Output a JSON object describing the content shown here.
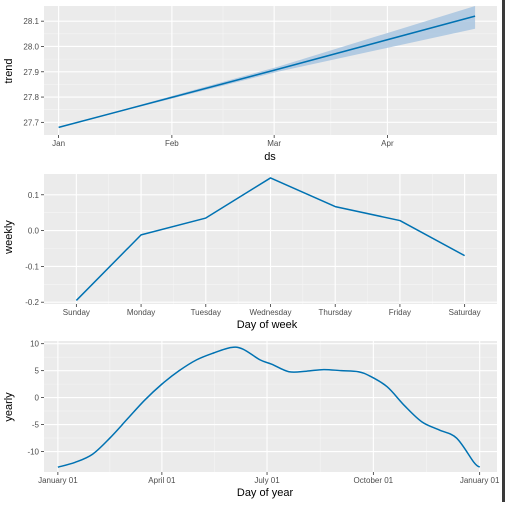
{
  "chart_data": [
    {
      "type": "line",
      "xlabel": "ds",
      "ylabel": "trend",
      "x_ticks": [
        "Jan",
        "Feb",
        "Mar",
        "Apr"
      ],
      "x_tick_days": [
        0,
        31,
        59,
        90
      ],
      "xlim_days": [
        -4,
        120
      ],
      "y_ticks": [
        27.7,
        27.8,
        27.9,
        28.0,
        28.1
      ],
      "y_tick_labels": [
        "27.7",
        "27.8",
        "27.9",
        "28.0",
        "28.1"
      ],
      "ylim": [
        27.65,
        28.16
      ],
      "line_color": "#0072B2",
      "band_color": "#a9c6e0",
      "series": [
        {
          "x_days": [
            0,
            60,
            114
          ],
          "values": [
            27.68,
            27.91,
            28.12
          ]
        }
      ],
      "uncertainty_band": {
        "x_days": [
          0,
          60,
          114
        ],
        "lower": [
          27.68,
          27.9,
          28.07
        ],
        "upper": [
          27.68,
          27.92,
          28.16
        ]
      },
      "grid": true
    },
    {
      "type": "line",
      "xlabel": "Day of week",
      "ylabel": "weekly",
      "categories": [
        "Sunday",
        "Monday",
        "Tuesday",
        "Wednesday",
        "Thursday",
        "Friday",
        "Saturday"
      ],
      "values": [
        -0.195,
        -0.012,
        0.035,
        0.147,
        0.067,
        0.028,
        -0.07
      ],
      "y_ticks": [
        -0.2,
        -0.1,
        0.0,
        0.1
      ],
      "y_tick_labels": [
        "-0.2",
        "-0.1",
        "0.0",
        "0.1"
      ],
      "ylim": [
        -0.205,
        0.158
      ],
      "line_color": "#0072B2",
      "grid": true
    },
    {
      "type": "line",
      "xlabel": "Day of year",
      "ylabel": "yearly",
      "x_ticks": [
        "January 01",
        "April 01",
        "July 01",
        "October 01",
        "January 01"
      ],
      "x_tick_days": [
        0,
        90,
        181,
        273,
        365
      ],
      "xlim_days": [
        -12,
        380
      ],
      "y_ticks": [
        -10,
        -5,
        0,
        5,
        10
      ],
      "y_tick_labels": [
        "-10",
        "-5",
        "0",
        "5",
        "10"
      ],
      "ylim": [
        -13.8,
        10.5
      ],
      "line_color": "#0072B2",
      "series": [
        {
          "x_days": [
            0,
            15,
            30,
            45,
            60,
            75,
            90,
            105,
            120,
            135,
            150,
            160,
            175,
            185,
            200,
            215,
            230,
            245,
            260,
            270,
            285,
            300,
            315,
            330,
            345,
            360,
            365
          ],
          "values": [
            -12.9,
            -12.0,
            -10.5,
            -7.5,
            -4.0,
            -0.5,
            2.5,
            5.0,
            7.0,
            8.3,
            9.3,
            9.0,
            7.0,
            6.2,
            4.8,
            4.9,
            5.2,
            5.0,
            4.8,
            4.0,
            2.0,
            -1.5,
            -4.5,
            -6.0,
            -7.5,
            -12.0,
            -12.9
          ]
        }
      ],
      "grid": true
    }
  ]
}
